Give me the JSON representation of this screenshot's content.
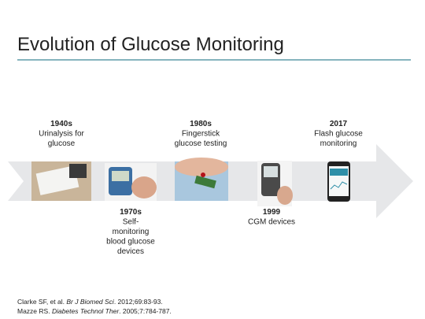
{
  "header": {
    "title": "Evolution of Glucose Monitoring"
  },
  "timeline": {
    "events": [
      {
        "year": "1940s",
        "lines": [
          "Urinalysis for",
          "glucose"
        ]
      },
      {
        "year": "1970s",
        "lines": [
          "Self-",
          "monitoring",
          "blood glucose",
          "devices"
        ]
      },
      {
        "year": "1980s",
        "lines": [
          "Fingerstick",
          "glucose testing"
        ]
      },
      {
        "year": "1999",
        "lines": [
          "CGM devices"
        ]
      },
      {
        "year": "2017",
        "lines": [
          "Flash glucose",
          "monitoring"
        ]
      }
    ]
  },
  "references": [
    [
      "Clarke SF, et al. ",
      "Br J Biomed Sci",
      ". 2012;69:83-93."
    ],
    [
      "Mazze RS. ",
      "Diabetes Technol Ther",
      ". 2005;7:784-787."
    ]
  ]
}
